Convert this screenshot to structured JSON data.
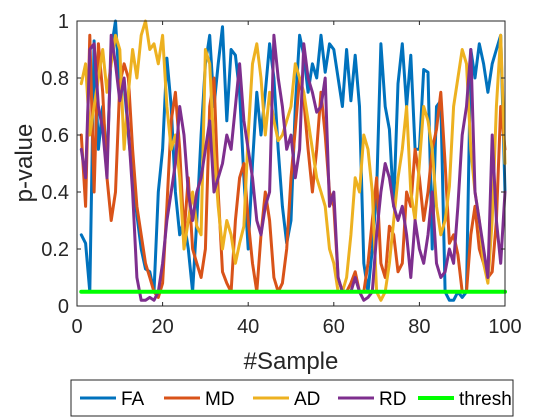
{
  "chart_data": {
    "type": "line",
    "xlabel": "#Sample",
    "ylabel": "p-value",
    "xlim": [
      0,
      100
    ],
    "ylim": [
      0,
      1
    ],
    "xticks": [
      0,
      20,
      40,
      60,
      80,
      100
    ],
    "yticks": [
      0,
      0.2,
      0.4,
      0.6,
      0.8,
      1
    ],
    "xtick_labels": [
      "0",
      "20",
      "40",
      "60",
      "80",
      "100"
    ],
    "ytick_labels": [
      "0",
      "0.2",
      "0.4",
      "0.6",
      "0.8",
      "1"
    ],
    "grid": false,
    "legend_position": "bottom",
    "x": [
      1,
      2,
      3,
      4,
      5,
      6,
      7,
      8,
      9,
      10,
      11,
      12,
      13,
      14,
      15,
      16,
      17,
      18,
      19,
      20,
      21,
      22,
      23,
      24,
      25,
      26,
      27,
      28,
      29,
      30,
      31,
      32,
      33,
      34,
      35,
      36,
      37,
      38,
      39,
      40,
      41,
      42,
      43,
      44,
      45,
      46,
      47,
      48,
      49,
      50,
      51,
      52,
      53,
      54,
      55,
      56,
      57,
      58,
      59,
      60,
      61,
      62,
      63,
      64,
      65,
      66,
      67,
      68,
      69,
      70,
      71,
      72,
      73,
      74,
      75,
      76,
      77,
      78,
      79,
      80,
      81,
      82,
      83,
      84,
      85,
      86,
      87,
      88,
      89,
      90,
      91,
      92,
      93,
      94,
      95,
      96,
      97,
      98,
      99,
      100
    ],
    "series": [
      {
        "name": "FA",
        "color": "#0072BD",
        "values": [
          0.25,
          0.22,
          0.05,
          0.93,
          0.55,
          0.7,
          0.5,
          0.9,
          1.0,
          0.75,
          0.78,
          0.6,
          0.45,
          0.32,
          0.2,
          0.13,
          0.12,
          0.05,
          0.4,
          0.55,
          0.87,
          0.7,
          0.4,
          0.25,
          0.3,
          0.2,
          0.05,
          0.3,
          0.6,
          0.85,
          0.95,
          0.7,
          0.85,
          0.98,
          0.65,
          0.9,
          0.88,
          0.75,
          0.45,
          0.2,
          0.5,
          0.75,
          0.6,
          0.75,
          0.92,
          0.8,
          0.55,
          0.35,
          0.22,
          0.3,
          0.7,
          0.95,
          0.88,
          0.75,
          0.85,
          0.8,
          0.95,
          0.82,
          0.92,
          0.9,
          0.8,
          0.7,
          0.9,
          0.72,
          0.88,
          0.7,
          0.15,
          0.05,
          0.2,
          0.4,
          0.92,
          0.7,
          0.62,
          0.35,
          0.78,
          0.92,
          0.7,
          0.88,
          0.55,
          0.55,
          0.83,
          0.82,
          0.2,
          0.7,
          0.72,
          0.05,
          0.02,
          0.02,
          0.05,
          0.03,
          0.05,
          0.9,
          0.8,
          0.92,
          0.85,
          0.75,
          0.85,
          0.9,
          0.95,
          0.4
        ]
      },
      {
        "name": "MD",
        "color": "#D95319",
        "values": [
          0.6,
          0.35,
          0.95,
          0.4,
          0.92,
          0.75,
          0.45,
          0.3,
          0.4,
          0.78,
          0.85,
          0.8,
          0.55,
          0.35,
          0.25,
          0.15,
          0.1,
          0.05,
          0.03,
          0.08,
          0.35,
          0.65,
          0.75,
          0.55,
          0.25,
          0.45,
          0.2,
          0.15,
          0.1,
          0.2,
          0.7,
          0.8,
          0.4,
          0.12,
          0.08,
          0.05,
          0.3,
          0.45,
          0.5,
          0.3,
          0.15,
          0.05,
          0.25,
          0.4,
          0.3,
          0.1,
          0.05,
          0.08,
          0.2,
          0.45,
          0.62,
          0.8,
          0.72,
          0.55,
          0.4,
          0.55,
          0.75,
          0.6,
          0.4,
          0.35,
          0.1,
          0.05,
          0.05,
          0.08,
          0.12,
          0.05,
          0.05,
          0.15,
          0.3,
          0.45,
          0.15,
          0.1,
          0.28,
          0.25,
          0.12,
          0.15,
          0.4,
          0.35,
          0.55,
          0.45,
          0.3,
          0.4,
          0.55,
          0.62,
          0.75,
          0.5,
          0.22,
          0.25,
          0.18,
          0.05,
          0.05,
          0.25,
          0.35,
          0.2,
          0.15,
          0.1,
          0.12,
          0.3,
          0.7,
          0.55
        ]
      },
      {
        "name": "AD",
        "color": "#EDB120",
        "values": [
          0.78,
          0.85,
          0.6,
          0.7,
          0.8,
          0.9,
          0.75,
          0.85,
          0.95,
          0.9,
          0.55,
          0.75,
          0.9,
          0.8,
          0.95,
          1.0,
          0.9,
          0.92,
          0.85,
          0.95,
          0.7,
          0.55,
          0.6,
          0.45,
          0.2,
          0.3,
          0.4,
          0.28,
          0.25,
          0.9,
          0.85,
          0.55,
          0.35,
          0.2,
          0.3,
          0.25,
          0.15,
          0.22,
          0.28,
          0.6,
          0.85,
          0.92,
          0.8,
          0.6,
          0.75,
          0.65,
          0.58,
          0.6,
          0.65,
          0.7,
          0.85,
          0.8,
          0.75,
          0.65,
          0.55,
          0.45,
          0.4,
          0.35,
          0.2,
          0.15,
          0.05,
          0.05,
          0.1,
          0.25,
          0.45,
          0.4,
          0.6,
          0.55,
          0.4,
          0.05,
          0.02,
          0.05,
          0.15,
          0.3,
          0.45,
          0.55,
          0.7,
          0.4,
          0.3,
          0.5,
          0.7,
          0.65,
          0.55,
          0.35,
          0.25,
          0.3,
          0.42,
          0.7,
          0.8,
          0.9,
          0.85,
          0.55,
          0.4,
          0.3,
          0.15,
          0.08,
          0.3,
          0.7,
          0.95,
          0.5
        ]
      },
      {
        "name": "RD",
        "color": "#7E2F8E",
        "values": [
          0.55,
          0.45,
          0.9,
          0.92,
          0.7,
          0.62,
          0.45,
          0.95,
          0.85,
          0.72,
          0.8,
          0.62,
          0.4,
          0.1,
          0.02,
          0.02,
          0.03,
          0.02,
          0.05,
          0.15,
          0.3,
          0.4,
          0.5,
          0.7,
          0.6,
          0.4,
          0.3,
          0.4,
          0.45,
          0.55,
          0.65,
          0.4,
          0.45,
          0.5,
          0.6,
          0.55,
          0.7,
          0.85,
          0.65,
          0.55,
          0.45,
          0.3,
          0.25,
          0.35,
          0.4,
          0.95,
          0.8,
          0.7,
          0.55,
          0.6,
          0.45,
          0.55,
          0.92,
          0.8,
          0.75,
          0.68,
          0.7,
          0.8,
          0.35,
          0.4,
          0.1,
          0.05,
          0.05,
          0.05,
          0.1,
          0.05,
          0.02,
          0.03,
          0.05,
          0.25,
          0.4,
          0.5,
          0.45,
          0.35,
          0.3,
          0.35,
          0.25,
          0.1,
          0.3,
          0.2,
          0.15,
          0.25,
          0.4,
          0.15,
          0.1,
          0.12,
          0.2,
          0.15,
          0.35,
          0.6,
          0.7,
          0.9,
          0.4,
          0.3,
          0.2,
          0.1,
          0.6,
          0.3,
          0.15,
          0.4
        ]
      },
      {
        "name": "thresh",
        "color": "#00FF00",
        "constant": 0.05
      }
    ]
  }
}
